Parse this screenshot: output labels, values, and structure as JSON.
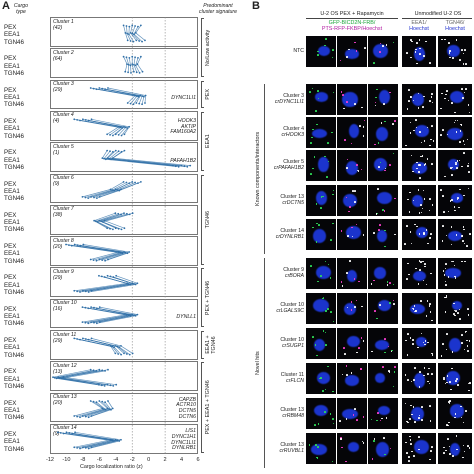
{
  "panel_a": {
    "letter": "A",
    "header_left": "Cargo\ntype",
    "header_right": "Predominant\ncluster signature",
    "x_axis_title": "Cargo localization ratio (z)",
    "cargo_types": [
      "PEX",
      "EEA1",
      "TGN46"
    ],
    "clusters": [
      {
        "name": "Cluster 1",
        "n": "(42)",
        "genes": []
      },
      {
        "name": "Cluster 2",
        "n": "(64)",
        "genes": []
      },
      {
        "name": "Cluster 3",
        "n": "(29)",
        "genes": [
          "DYNC1LI1"
        ]
      },
      {
        "name": "Cluster 4",
        "n": "(4)",
        "genes": [
          "HOOK3",
          "AKTIP",
          "FAM160A2"
        ]
      },
      {
        "name": "Cluster 5",
        "n": "(1)",
        "genes": [
          "PAFAH1B2"
        ]
      },
      {
        "name": "Cluster 6",
        "n": "(9)",
        "genes": []
      },
      {
        "name": "Cluster 7",
        "n": "(38)",
        "genes": []
      },
      {
        "name": "Cluster 8",
        "n": "(20)",
        "genes": []
      },
      {
        "name": "Cluster 9",
        "n": "(29)",
        "genes": []
      },
      {
        "name": "Cluster 10",
        "n": "(16)",
        "genes": [
          "DYNLL1"
        ]
      },
      {
        "name": "Cluster 11",
        "n": "(29)",
        "genes": []
      },
      {
        "name": "Cluster 12",
        "n": "(13)",
        "genes": []
      },
      {
        "name": "Cluster 13",
        "n": "(20)",
        "genes": [
          "CAPZB",
          "ACTR10",
          "DCTN5",
          "DCTN6"
        ]
      },
      {
        "name": "Cluster 14",
        "n": "(9)",
        "genes": [
          "LIS1",
          "DYNC1H1",
          "DYNC1LI1",
          "DYNLRB1"
        ]
      }
    ],
    "signatures": [
      "No/Low activity",
      "PEX",
      "EEA1",
      "TGN46",
      "PEX + TGN46",
      "EEA1 + TGN46",
      "PEX + EEA1 + TGN46"
    ],
    "x_ticks": [
      "-12",
      "-10",
      "-8",
      "-6",
      "-4",
      "-2",
      "0",
      "2",
      "4",
      "6"
    ],
    "line_color": "#2f6fa7"
  },
  "panel_b": {
    "letter": "B",
    "col_group_left": "U-2 OS PEX + Rapamycin",
    "col_group_right": "Unmodified U-2 OS",
    "col_sub_left_1": "GFP-BICD2N-FRB/",
    "col_sub_left_2": "PTS-RFP-FKBP/Hoechst",
    "col_sub_right_a_1": "EEA1/",
    "col_sub_right_a_2": "Hoechst",
    "col_sub_right_b_1": "TGN46/",
    "col_sub_right_b_2": "Hoechst",
    "group_known": "Known components/interactors",
    "group_novel": "Novel hits",
    "rows": [
      {
        "line1": "NTC",
        "line2": ""
      },
      {
        "line1": "Cluster 3",
        "line2": "crDYNC1LI1"
      },
      {
        "line1": "Cluster 4",
        "line2": "crHOOK3"
      },
      {
        "line1": "Cluster 5",
        "line2": "crPAFAH1B2"
      },
      {
        "line1": "Cluster 13",
        "line2": "crDCTN5"
      },
      {
        "line1": "Cluster 14",
        "line2": "crDYNLRB1"
      },
      {
        "line1": "Cluster 9",
        "line2": "crBORA"
      },
      {
        "line1": "Cluster 10",
        "line2": "crLGALS9C"
      },
      {
        "line1": "Cluster 10",
        "line2": "crSUGP1"
      },
      {
        "line1": "Cluster 11",
        "line2": "crFLCN"
      },
      {
        "line1": "Cluster 13",
        "line2": "crRBM48"
      },
      {
        "line1": "Cluster 13",
        "line2": "crRUVBL1"
      }
    ],
    "colors": {
      "green": "#2fe05a",
      "magenta": "#ff40d0",
      "blue": "#2040ff",
      "white": "#ffffff"
    }
  }
}
